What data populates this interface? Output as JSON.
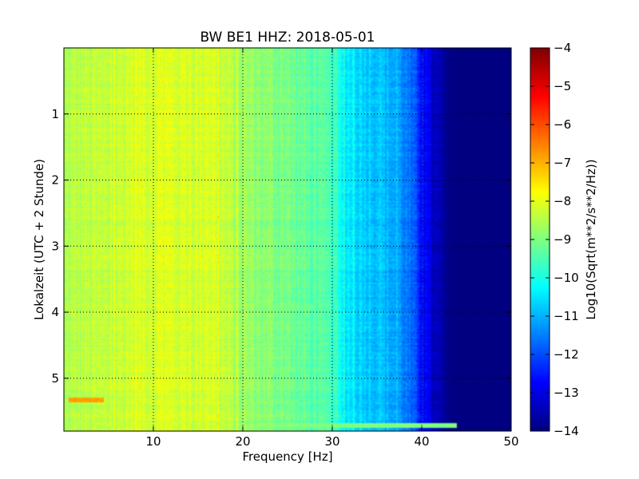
{
  "chart_data": {
    "type": "heatmap",
    "title": "BW BE1 HHZ: 2018-05-01",
    "xlabel": "Frequency [Hz]",
    "ylabel": "Lokalzeit (UTC + 2 Stunde)",
    "xlim": [
      0,
      50
    ],
    "ylim": [
      5.8,
      0
    ],
    "x_ticks": [
      10,
      20,
      30,
      40,
      50
    ],
    "y_ticks": [
      1,
      2,
      3,
      4,
      5
    ],
    "grid": true,
    "colormap": "jet",
    "colorbar": {
      "label": "Log10(Sqrt(m**2/s**2/Hz))",
      "range": [
        -14,
        -4
      ],
      "ticks": [
        -4,
        -5,
        -6,
        -7,
        -8,
        -9,
        -10,
        -11,
        -12,
        -13,
        -14
      ]
    },
    "frequency_profile": {
      "frequency_hz": [
        0,
        2,
        5,
        8,
        10,
        12,
        15,
        16,
        20,
        25,
        28,
        30,
        31,
        33,
        35,
        37,
        38,
        39,
        40,
        41,
        42,
        43,
        44,
        45,
        50
      ],
      "log10_level": [
        -8.6,
        -8.4,
        -8.4,
        -8.1,
        -8.1,
        -8.1,
        -8.2,
        -8.0,
        -8.7,
        -9.1,
        -9.4,
        -9.6,
        -10.3,
        -10.6,
        -10.8,
        -11.1,
        -11.4,
        -11.9,
        -12.6,
        -13.2,
        -13.6,
        -13.9,
        -14.0,
        -14.0,
        -14.0
      ]
    },
    "bright_bands": [
      {
        "time_h": 5.33,
        "freq_range_hz": [
          0.5,
          4.5
        ],
        "log10_level": -6.8
      },
      {
        "time_h": 5.72,
        "freq_range_hz": [
          0,
          44
        ],
        "log10_level": -9.0
      },
      {
        "time_h": 3.92,
        "freq_range_hz": [
          10,
          28
        ],
        "log10_level": -9.2
      }
    ]
  },
  "colors": {
    "jet": [
      "#000080",
      "#0000ff",
      "#00ffff",
      "#ffff00",
      "#ff0000",
      "#800000"
    ]
  }
}
